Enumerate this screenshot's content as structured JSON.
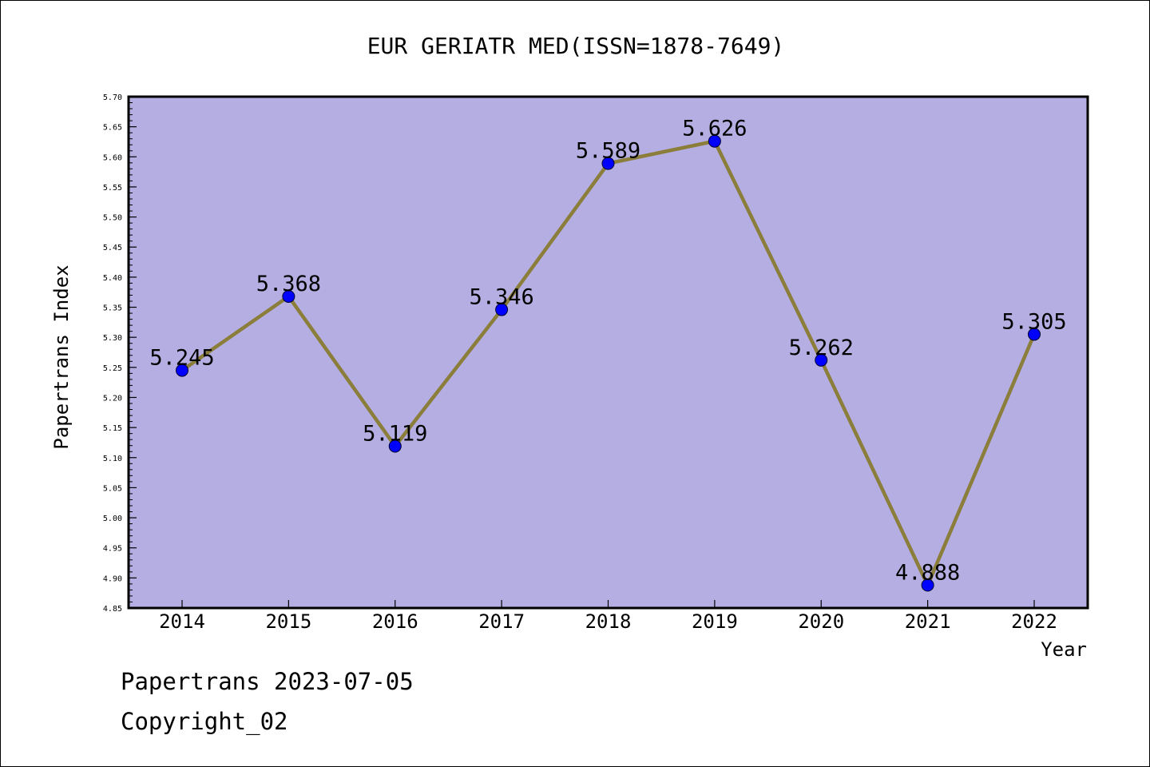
{
  "chart_data": {
    "type": "line",
    "title": "EUR GERIATR MED(ISSN=1878-7649)",
    "xlabel": "Year",
    "ylabel": "Papertrans Index",
    "categories": [
      "2014",
      "2015",
      "2016",
      "2017",
      "2018",
      "2019",
      "2020",
      "2021",
      "2022"
    ],
    "series": [
      {
        "values": [
          5.245,
          5.368,
          5.119,
          5.346,
          5.589,
          5.626,
          5.262,
          4.888,
          5.305
        ],
        "labels": [
          "5.245",
          "5.368",
          "5.119",
          "5.346",
          "5.589",
          "5.626",
          "5.262",
          "4.888",
          "5.305"
        ]
      }
    ],
    "ylim": [
      4.85,
      5.7
    ],
    "yticks": [
      "4.85",
      "4.90",
      "4.95",
      "5.00",
      "5.05",
      "5.10",
      "5.15",
      "5.20",
      "5.25",
      "5.30",
      "5.35",
      "5.40",
      "5.45",
      "5.50",
      "5.55",
      "5.60",
      "5.65",
      "5.70"
    ],
    "grid": false,
    "colors": {
      "plot_background": "#b4aee2",
      "line": "#8b7d3a",
      "marker": "#0000ff"
    }
  },
  "footer": {
    "source_line": "Papertrans 2023-07-05",
    "copyright": "Copyright_02"
  }
}
